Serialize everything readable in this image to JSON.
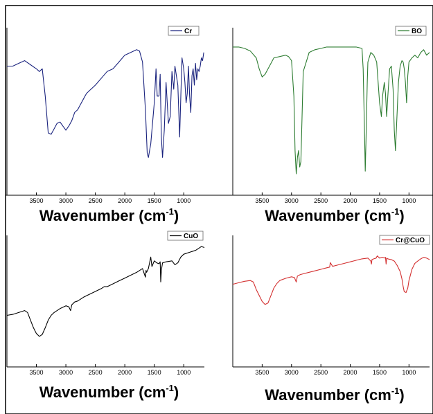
{
  "chart_data": [
    {
      "type": "line",
      "xlabel": {
        "main": "Wavenumber (cm",
        "sup": "-1",
        "close": ")"
      },
      "x_ticks": [
        3500,
        3000,
        2500,
        2000,
        1500,
        1000
      ],
      "xlim": [
        4000,
        650
      ],
      "ylim": [
        0,
        100
      ],
      "y_ticks_shown": false,
      "legend_position": "top-right",
      "series": [
        {
          "name": "Cr",
          "color": "#1a237e",
          "x": [
            4000,
            3900,
            3800,
            3700,
            3600,
            3500,
            3450,
            3400,
            3350,
            3300,
            3250,
            3200,
            3150,
            3100,
            3050,
            3000,
            2950,
            2900,
            2850,
            2800,
            2750,
            2700,
            2650,
            2600,
            2500,
            2400,
            2300,
            2200,
            2100,
            2000,
            1900,
            1800,
            1750,
            1700,
            1650,
            1620,
            1600,
            1560,
            1500,
            1470,
            1450,
            1420,
            1400,
            1380,
            1360,
            1330,
            1300,
            1260,
            1230,
            1200,
            1170,
            1150,
            1100,
            1070,
            1050,
            1030,
            1000,
            980,
            960,
            940,
            920,
            900,
            880,
            860,
            840,
            820,
            800,
            780,
            760,
            740,
            720,
            700,
            680,
            660
          ],
          "y": [
            82,
            82,
            84,
            86,
            83,
            80,
            78,
            80,
            60,
            33,
            32,
            36,
            40,
            41,
            38,
            35,
            38,
            42,
            48,
            50,
            54,
            58,
            62,
            64,
            68,
            73,
            78,
            80,
            85,
            90,
            92,
            94,
            93,
            85,
            50,
            18,
            15,
            25,
            55,
            80,
            60,
            60,
            76,
            30,
            15,
            35,
            70,
            40,
            45,
            78,
            65,
            82,
            68,
            30,
            60,
            88,
            80,
            70,
            55,
            62,
            82,
            60,
            48,
            75,
            80,
            68,
            84,
            72,
            80,
            78,
            82,
            88,
            86,
            92
          ]
        },
        {
          "name": "BO",
          "color": "#2e7d32",
          "x": [
            4000,
            3900,
            3800,
            3700,
            3600,
            3550,
            3500,
            3450,
            3400,
            3300,
            3200,
            3100,
            3050,
            3000,
            2960,
            2940,
            2920,
            2900,
            2880,
            2860,
            2840,
            2820,
            2800,
            2750,
            2700,
            2600,
            2500,
            2400,
            2300,
            2200,
            2100,
            2000,
            1900,
            1800,
            1780,
            1760,
            1745,
            1730,
            1710,
            1700,
            1650,
            1600,
            1550,
            1500,
            1470,
            1450,
            1420,
            1400,
            1380,
            1360,
            1330,
            1300,
            1270,
            1250,
            1230,
            1200,
            1180,
            1150,
            1120,
            1100,
            1080,
            1060,
            1040,
            1020,
            1000,
            950,
            900,
            850,
            800,
            750,
            700,
            650
          ],
          "y": [
            96,
            96,
            95,
            93,
            88,
            80,
            74,
            76,
            80,
            88,
            89,
            90,
            89,
            86,
            60,
            20,
            3,
            15,
            20,
            8,
            12,
            45,
            78,
            85,
            92,
            94,
            95,
            96,
            96,
            96,
            96,
            96,
            96,
            95,
            80,
            40,
            5,
            30,
            70,
            85,
            92,
            90,
            85,
            55,
            45,
            60,
            70,
            62,
            45,
            60,
            80,
            82,
            65,
            35,
            20,
            50,
            70,
            82,
            86,
            85,
            80,
            70,
            55,
            75,
            85,
            88,
            90,
            88,
            92,
            94,
            90,
            92
          ]
        }
      ]
    },
    {
      "type": "line",
      "xlabel": {
        "main": "Wavenumber (cm",
        "sup": "-1",
        "close": ")"
      },
      "x_ticks": [
        3500,
        3000,
        2500,
        2000,
        1500,
        1000
      ],
      "xlim": [
        4000,
        650
      ],
      "ylim": [
        0,
        100
      ],
      "y_ticks_shown": false,
      "legend_position": "top-right",
      "series": [
        {
          "name": "CuO",
          "color": "#000000",
          "x": [
            4000,
            3900,
            3800,
            3700,
            3650,
            3600,
            3550,
            3500,
            3450,
            3400,
            3350,
            3300,
            3250,
            3200,
            3100,
            3000,
            2950,
            2920,
            2900,
            2850,
            2800,
            2700,
            2600,
            2500,
            2400,
            2350,
            2300,
            2200,
            2100,
            2000,
            1900,
            1800,
            1700,
            1650,
            1640,
            1630,
            1600,
            1560,
            1540,
            1500,
            1460,
            1420,
            1400,
            1390,
            1380,
            1360,
            1300,
            1200,
            1150,
            1100,
            1050,
            1000,
            900,
            800,
            750,
            700,
            650
          ],
          "y": [
            25,
            26,
            28,
            30,
            28,
            20,
            12,
            6,
            3,
            5,
            12,
            20,
            25,
            28,
            32,
            35,
            34,
            30,
            36,
            39,
            40,
            44,
            47,
            50,
            53,
            55,
            55,
            58,
            61,
            64,
            67,
            70,
            74,
            65,
            72,
            70,
            74,
            86,
            76,
            82,
            80,
            79,
            81,
            60,
            72,
            80,
            81,
            82,
            78,
            80,
            86,
            89,
            91,
            93,
            95,
            97,
            96
          ]
        },
        {
          "name": "Cr@CuO",
          "color": "#d32f2f",
          "x": [
            4000,
            3900,
            3800,
            3700,
            3650,
            3600,
            3550,
            3500,
            3450,
            3400,
            3350,
            3300,
            3250,
            3200,
            3100,
            3000,
            2950,
            2920,
            2900,
            2850,
            2800,
            2700,
            2600,
            2500,
            2400,
            2350,
            2340,
            2300,
            2200,
            2100,
            2000,
            1900,
            1800,
            1700,
            1650,
            1640,
            1630,
            1600,
            1560,
            1540,
            1500,
            1450,
            1420,
            1400,
            1390,
            1380,
            1360,
            1300,
            1250,
            1200,
            1150,
            1120,
            1100,
            1080,
            1050,
            1020,
            1000,
            950,
            900,
            850,
            800,
            750,
            700,
            650
          ],
          "y": [
            55,
            57,
            59,
            60,
            58,
            48,
            40,
            32,
            28,
            30,
            40,
            50,
            56,
            60,
            63,
            65,
            64,
            58,
            66,
            68,
            69,
            71,
            73,
            75,
            77,
            78,
            84,
            79,
            81,
            83,
            85,
            87,
            89,
            90,
            86,
            82,
            88,
            89,
            90,
            93,
            90,
            91,
            90,
            91,
            82,
            90,
            89,
            88,
            86,
            80,
            72,
            62,
            52,
            45,
            44,
            50,
            60,
            75,
            83,
            86,
            89,
            91,
            90,
            88
          ]
        }
      ]
    }
  ]
}
